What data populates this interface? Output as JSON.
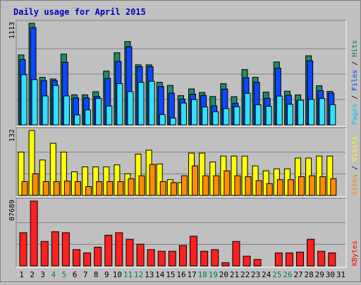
{
  "chart_data": {
    "type": "bar",
    "title": "Daily usage for April 2015",
    "days": [
      "1",
      "2",
      "3",
      "4",
      "5",
      "6",
      "7",
      "8",
      "9",
      "10",
      "11",
      "12",
      "13",
      "14",
      "15",
      "16",
      "17",
      "18",
      "19",
      "20",
      "21",
      "22",
      "23",
      "24",
      "25",
      "26",
      "27",
      "28",
      "29",
      "30",
      "31"
    ],
    "weekend_days": [
      "4",
      "5",
      "11",
      "12",
      "18",
      "19",
      "25",
      "26"
    ],
    "panels": [
      {
        "id": "pages_files_hits",
        "max_label": "1113",
        "ymax": 1113,
        "legend": [
          {
            "label": "Pages",
            "color": "#00c8e0"
          },
          {
            "label": "Files",
            "color": "#0040ff"
          },
          {
            "label": "Hits",
            "color": "#008040"
          }
        ],
        "series": [
          {
            "name": "Hits",
            "color": "#1e8c64",
            "values": [
              766,
              1113,
              521,
              503,
              776,
              329,
              329,
              363,
              589,
              790,
              913,
              658,
              658,
              466,
              432,
              320,
              394,
              355,
              311,
              451,
              309,
              606,
              521,
              359,
              689,
              369,
              328,
              757,
              429,
              367,
              0
            ]
          },
          {
            "name": "Files",
            "color": "#0d47ff",
            "values": [
              715,
              1065,
              485,
              485,
              686,
              295,
              295,
              311,
              509,
              695,
              857,
              637,
              637,
              420,
              348,
              282,
              336,
              322,
              208,
              392,
              237,
              516,
              467,
              292,
              622,
              324,
              269,
              702,
              375,
              349,
              0
            ]
          },
          {
            "name": "Pages",
            "color": "#33e0ff",
            "values": [
              550,
              496,
              317,
              432,
              317,
              109,
              164,
              289,
              206,
              452,
              364,
              466,
              478,
              113,
              75,
              239,
              277,
              197,
              144,
              178,
              199,
              346,
              220,
              204,
              315,
              226,
              270,
              279,
              289,
              221,
              0
            ]
          }
        ]
      },
      {
        "id": "sites_visits",
        "max_label": "132",
        "ymax": 132,
        "legend": [
          {
            "label": "Sites",
            "color": "#ff8000"
          },
          {
            "label": "Visits",
            "color": "#ffff00"
          }
        ],
        "series": [
          {
            "name": "Visits",
            "color": "#ffff00",
            "values": [
              88,
              132,
              72,
              106,
              88,
              48,
              58,
              58,
              58,
              62,
              44,
              84,
              92,
              64,
              32,
              26,
              86,
              86,
              68,
              80,
              80,
              80,
              60,
              50,
              54,
              54,
              76,
              76,
              80,
              80,
              0
            ]
          },
          {
            "name": "Sites",
            "color": "#ff8c00",
            "values": [
              28,
              44,
              28,
              28,
              29,
              28,
              18,
              28,
              28,
              28,
              34,
              40,
              63,
              28,
              26,
              40,
              60,
              40,
              40,
              50,
              40,
              38,
              30,
              24,
              32,
              32,
              38,
              40,
              38,
              34,
              0
            ]
          }
        ]
      },
      {
        "id": "kbytes",
        "max_label": "87689",
        "ymax": 87689,
        "legend": [
          {
            "label": "KBytes",
            "color": "#ff0000"
          }
        ],
        "series": [
          {
            "name": "KBytes",
            "color": "#ff2020",
            "values": [
              44912,
              87689,
              33125,
              46235,
              44912,
              22083,
              17660,
              25405,
              41593,
              44912,
              36062,
              29435,
              22083,
              19871,
              19871,
              27607,
              40261,
              19871,
              22083,
              4398,
              33125,
              13256,
              8838,
              0,
              17660,
              17660,
              18764,
              36062,
              19871,
              17660,
              0
            ]
          }
        ]
      }
    ]
  }
}
